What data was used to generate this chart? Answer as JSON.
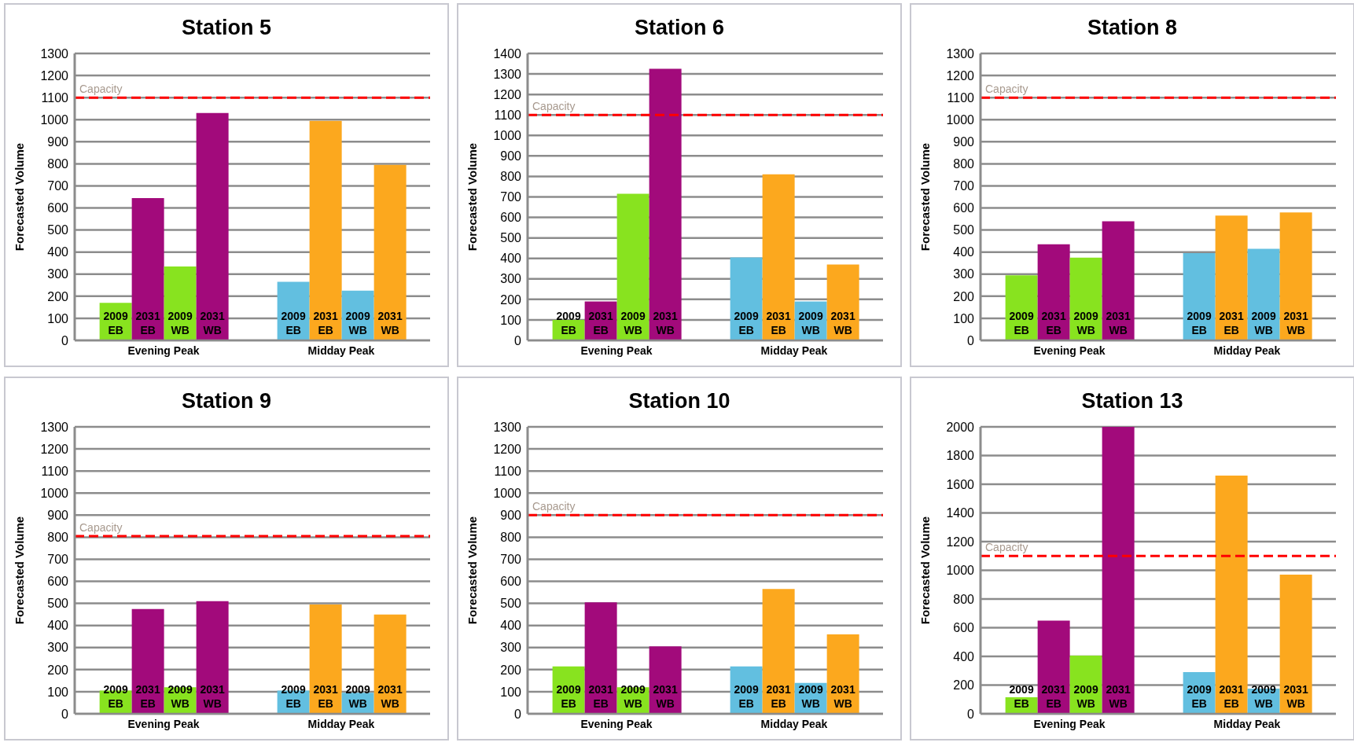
{
  "chart_data": [
    {
      "type": "bar",
      "title": "Station 5",
      "ylabel": "Forecasted Volume",
      "categories": [
        "Evening Peak",
        "Midday Peak"
      ],
      "series": [
        {
          "name": "2009 EB",
          "values": [
            170,
            265
          ],
          "colors": [
            "#88e31f",
            "#62bfe0"
          ]
        },
        {
          "name": "2031 EB",
          "values": [
            645,
            995
          ],
          "colors": [
            "#a20a7b",
            "#fca81e"
          ]
        },
        {
          "name": "2009 WB",
          "values": [
            335,
            225
          ],
          "colors": [
            "#88e31f",
            "#62bfe0"
          ]
        },
        {
          "name": "2031 WB",
          "values": [
            1030,
            795
          ],
          "colors": [
            "#a20a7b",
            "#fca81e"
          ]
        }
      ],
      "ylim": [
        0,
        1300
      ],
      "yticks": [
        0,
        100,
        200,
        300,
        400,
        500,
        600,
        700,
        800,
        900,
        1000,
        1100,
        1200,
        1300
      ],
      "grid": "y",
      "ref_lines": [
        {
          "axis": "y",
          "value": 1100,
          "label": "Capacity",
          "color": "#ff0000",
          "line_style": "dashed"
        }
      ]
    },
    {
      "type": "bar",
      "title": "Station 6",
      "ylabel": "Forecasted Volume",
      "categories": [
        "Evening Peak",
        "Midday Peak"
      ],
      "series": [
        {
          "name": "2009 EB",
          "values": [
            100,
            405
          ],
          "colors": [
            "#88e31f",
            "#62bfe0"
          ]
        },
        {
          "name": "2031 EB",
          "values": [
            190,
            810
          ],
          "colors": [
            "#a20a7b",
            "#fca81e"
          ]
        },
        {
          "name": "2009 WB",
          "values": [
            715,
            190
          ],
          "colors": [
            "#88e31f",
            "#62bfe0"
          ]
        },
        {
          "name": "2031 WB",
          "values": [
            1325,
            370
          ],
          "colors": [
            "#a20a7b",
            "#fca81e"
          ]
        }
      ],
      "ylim": [
        0,
        1400
      ],
      "yticks": [
        0,
        100,
        200,
        300,
        400,
        500,
        600,
        700,
        800,
        900,
        1000,
        1100,
        1200,
        1300,
        1400
      ],
      "grid": "y",
      "ref_lines": [
        {
          "axis": "y",
          "value": 1100,
          "label": "Capacity",
          "color": "#ff0000",
          "line_style": "dashed"
        }
      ]
    },
    {
      "type": "bar",
      "title": "Station 8",
      "ylabel": "Forecasted Volume",
      "categories": [
        "Evening Peak",
        "Midday Peak"
      ],
      "series": [
        {
          "name": "2009 EB",
          "values": [
            295,
            395
          ],
          "colors": [
            "#88e31f",
            "#62bfe0"
          ]
        },
        {
          "name": "2031 EB",
          "values": [
            435,
            565
          ],
          "colors": [
            "#a20a7b",
            "#fca81e"
          ]
        },
        {
          "name": "2009 WB",
          "values": [
            375,
            415
          ],
          "colors": [
            "#88e31f",
            "#62bfe0"
          ]
        },
        {
          "name": "2031 WB",
          "values": [
            540,
            580
          ],
          "colors": [
            "#a20a7b",
            "#fca81e"
          ]
        }
      ],
      "ylim": [
        0,
        1300
      ],
      "yticks": [
        0,
        100,
        200,
        300,
        400,
        500,
        600,
        700,
        800,
        900,
        1000,
        1100,
        1200,
        1300
      ],
      "grid": "y",
      "ref_lines": [
        {
          "axis": "y",
          "value": 1100,
          "label": "Capacity",
          "color": "#ff0000",
          "line_style": "dashed"
        }
      ]
    },
    {
      "type": "bar",
      "title": "Station 9",
      "ylabel": "Forecasted Volume",
      "categories": [
        "Evening Peak",
        "Midday Peak"
      ],
      "series": [
        {
          "name": "2009 EB",
          "values": [
            105,
            105
          ],
          "colors": [
            "#88e31f",
            "#62bfe0"
          ]
        },
        {
          "name": "2031 EB",
          "values": [
            475,
            495
          ],
          "colors": [
            "#a20a7b",
            "#fca81e"
          ]
        },
        {
          "name": "2009 WB",
          "values": [
            120,
            95
          ],
          "colors": [
            "#88e31f",
            "#62bfe0"
          ]
        },
        {
          "name": "2031 WB",
          "values": [
            510,
            450
          ],
          "colors": [
            "#a20a7b",
            "#fca81e"
          ]
        }
      ],
      "ylim": [
        0,
        1300
      ],
      "yticks": [
        0,
        100,
        200,
        300,
        400,
        500,
        600,
        700,
        800,
        900,
        1000,
        1100,
        1200,
        1300
      ],
      "grid": "y",
      "ref_lines": [
        {
          "axis": "y",
          "value": 805,
          "label": "Capacity",
          "color": "#ff0000",
          "line_style": "dashed"
        }
      ]
    },
    {
      "type": "bar",
      "title": "Station 10",
      "ylabel": "Forecasted Volume",
      "categories": [
        "Evening Peak",
        "Midday Peak"
      ],
      "series": [
        {
          "name": "2009 EB",
          "values": [
            215,
            215
          ],
          "colors": [
            "#88e31f",
            "#62bfe0"
          ]
        },
        {
          "name": "2031 EB",
          "values": [
            505,
            565
          ],
          "colors": [
            "#a20a7b",
            "#fca81e"
          ]
        },
        {
          "name": "2009 WB",
          "values": [
            120,
            140
          ],
          "colors": [
            "#88e31f",
            "#62bfe0"
          ]
        },
        {
          "name": "2031 WB",
          "values": [
            305,
            360
          ],
          "colors": [
            "#a20a7b",
            "#fca81e"
          ]
        }
      ],
      "ylim": [
        0,
        1300
      ],
      "yticks": [
        0,
        100,
        200,
        300,
        400,
        500,
        600,
        700,
        800,
        900,
        1000,
        1100,
        1200,
        1300
      ],
      "grid": "y",
      "ref_lines": [
        {
          "axis": "y",
          "value": 900,
          "label": "Capacity",
          "color": "#ff0000",
          "line_style": "dashed"
        }
      ]
    },
    {
      "type": "bar",
      "title": "Station 13",
      "ylabel": "Forecasted Volume",
      "categories": [
        "Evening Peak",
        "Midday Peak"
      ],
      "series": [
        {
          "name": "2009 EB",
          "values": [
            115,
            290
          ],
          "colors": [
            "#88e31f",
            "#62bfe0"
          ]
        },
        {
          "name": "2031 EB",
          "values": [
            650,
            1660
          ],
          "colors": [
            "#a20a7b",
            "#fca81e"
          ]
        },
        {
          "name": "2009 WB",
          "values": [
            405,
            175
          ],
          "colors": [
            "#88e31f",
            "#62bfe0"
          ]
        },
        {
          "name": "2031 WB",
          "values": [
            2000,
            970
          ],
          "colors": [
            "#a20a7b",
            "#fca81e"
          ]
        }
      ],
      "ylim": [
        0,
        2000
      ],
      "yticks": [
        0,
        200,
        400,
        600,
        800,
        1000,
        1200,
        1400,
        1600,
        1800,
        2000
      ],
      "grid": "y",
      "ref_lines": [
        {
          "axis": "y",
          "value": 1100,
          "label": "Capacity",
          "color": "#ff0000",
          "line_style": "dashed"
        }
      ]
    }
  ]
}
